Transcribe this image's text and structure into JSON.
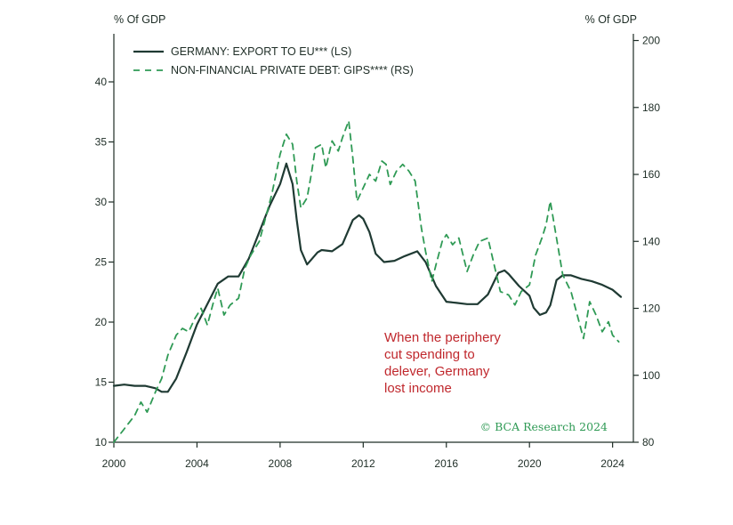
{
  "colors": {
    "line_solid": "#1f3a33",
    "line_dashed": "#2f9a55",
    "axis": "#1e2d26",
    "annotation": "#c0282d",
    "credit": "#2f9a55"
  },
  "chart_data": {
    "type": "line",
    "title": "",
    "y_left_label": "% Of GDP",
    "y_right_label": "% Of GDP",
    "xlim": [
      2000,
      2025
    ],
    "ylim_left": [
      10,
      44
    ],
    "ylim_right": [
      80,
      202
    ],
    "x_ticks": [
      2000,
      2004,
      2008,
      2012,
      2016,
      2020,
      2024
    ],
    "y_left_ticks": [
      10,
      15,
      20,
      25,
      30,
      35,
      40
    ],
    "y_right_ticks": [
      80,
      100,
      120,
      140,
      160,
      180,
      200
    ],
    "legend": [
      {
        "label": "GERMANY: EXPORT TO EU*** (LS)",
        "style": "solid"
      },
      {
        "label": "NON-FINANCIAL PRIVATE DEBT: GIPS**** (RS)",
        "style": "dashed"
      }
    ],
    "annotation": [
      "When the periphery",
      "cut spending to",
      "delever, Germany",
      "lost income"
    ],
    "credit": "© BCA Research 2024",
    "series": [
      {
        "name": "GERMANY: EXPORT TO EU*** (LS)",
        "axis": "left",
        "style": "solid",
        "x": [
          2000.0,
          2000.5,
          2001.0,
          2001.5,
          2002.0,
          2002.3,
          2002.6,
          2003.0,
          2003.5,
          2004.0,
          2004.5,
          2005.0,
          2005.5,
          2006.0,
          2006.5,
          2007.0,
          2007.5,
          2008.0,
          2008.3,
          2008.6,
          2008.8,
          2009.0,
          2009.3,
          2009.5,
          2009.8,
          2010.0,
          2010.5,
          2011.0,
          2011.5,
          2011.8,
          2012.0,
          2012.3,
          2012.6,
          2013.0,
          2013.5,
          2014.0,
          2014.6,
          2015.0,
          2015.5,
          2016.0,
          2016.5,
          2017.0,
          2017.5,
          2018.0,
          2018.5,
          2018.8,
          2019.0,
          2019.5,
          2020.0,
          2020.2,
          2020.5,
          2020.8,
          2021.0,
          2021.3,
          2021.6,
          2022.0,
          2022.5,
          2023.0,
          2023.5,
          2024.0,
          2024.4
        ],
        "values": [
          14.7,
          14.8,
          14.7,
          14.7,
          14.5,
          14.2,
          14.2,
          15.3,
          17.5,
          19.8,
          21.5,
          23.2,
          23.8,
          23.8,
          25.3,
          27.5,
          29.7,
          31.5,
          33.2,
          31.5,
          28.5,
          26.0,
          24.8,
          25.2,
          25.8,
          26.0,
          25.9,
          26.5,
          28.5,
          28.9,
          28.6,
          27.5,
          25.7,
          25.0,
          25.1,
          25.5,
          25.9,
          25.0,
          23.0,
          21.7,
          21.6,
          21.5,
          21.5,
          22.3,
          24.1,
          24.3,
          24.0,
          23.0,
          22.2,
          21.2,
          20.6,
          20.8,
          21.4,
          23.5,
          23.9,
          23.9,
          23.6,
          23.4,
          23.1,
          22.7,
          22.1
        ]
      },
      {
        "name": "NON-FINANCIAL PRIVATE DEBT: GIPS**** (RS)",
        "axis": "right",
        "style": "dashed",
        "x": [
          2000.0,
          2000.5,
          2001.0,
          2001.3,
          2001.6,
          2002.0,
          2002.3,
          2002.6,
          2003.0,
          2003.3,
          2003.6,
          2003.9,
          2004.2,
          2004.5,
          2004.8,
          2005.0,
          2005.3,
          2005.6,
          2006.0,
          2006.3,
          2006.6,
          2007.0,
          2007.3,
          2007.6,
          2008.0,
          2008.3,
          2008.6,
          2008.8,
          2009.0,
          2009.3,
          2009.5,
          2009.7,
          2010.0,
          2010.2,
          2010.5,
          2010.8,
          2011.0,
          2011.3,
          2011.5,
          2011.7,
          2012.0,
          2012.3,
          2012.6,
          2012.9,
          2013.1,
          2013.3,
          2013.6,
          2013.9,
          2014.2,
          2014.5,
          2014.8,
          2015.0,
          2015.3,
          2015.5,
          2015.8,
          2016.0,
          2016.3,
          2016.6,
          2017.0,
          2017.3,
          2017.6,
          2018.0,
          2018.3,
          2018.6,
          2019.0,
          2019.3,
          2019.6,
          2020.0,
          2020.3,
          2020.6,
          2020.8,
          2021.0,
          2021.3,
          2021.6,
          2022.0,
          2022.3,
          2022.6,
          2022.9,
          2023.2,
          2023.5,
          2023.8,
          2024.0,
          2024.3
        ],
        "values": [
          80,
          84,
          88,
          92,
          89,
          95,
          99,
          106,
          112,
          114,
          113,
          117,
          120,
          115,
          122,
          126,
          118,
          121,
          123,
          132,
          136,
          140,
          147,
          154,
          166,
          172,
          169,
          158,
          150,
          153,
          160,
          168,
          169,
          162,
          170,
          167,
          171,
          176,
          165,
          152,
          156,
          160,
          158,
          164,
          163,
          157,
          161,
          163,
          161,
          158,
          144,
          137,
          128,
          133,
          140,
          142,
          139,
          141,
          131,
          136,
          140,
          141,
          133,
          125,
          124,
          121,
          125,
          127,
          136,
          141,
          145,
          152,
          141,
          130,
          125,
          118,
          111,
          122,
          118,
          113,
          116,
          112,
          110
        ]
      }
    ]
  }
}
